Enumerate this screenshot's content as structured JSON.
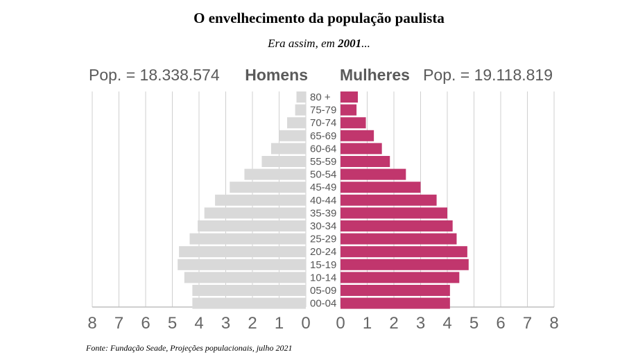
{
  "header": {
    "title": "O envelhecimento da população paulista",
    "subtitle_prefix": "Era assim, em ",
    "subtitle_year": "2001",
    "subtitle_suffix": "..."
  },
  "source": "Fonte: Fundação Seade, Projeções populacionais, julho 2021",
  "chart_data": {
    "type": "bar",
    "orientation": "horizontal",
    "layout": "population-pyramid",
    "categories": [
      "00-04",
      "05-09",
      "10-14",
      "15-19",
      "20-24",
      "25-29",
      "30-34",
      "35-39",
      "40-44",
      "45-49",
      "50-54",
      "55-59",
      "60-64",
      "65-69",
      "70-74",
      "75-79",
      "80 +"
    ],
    "series": [
      {
        "name": "Homens",
        "total_label": "Pop. = 18.338.574",
        "color": "#d9d9d9",
        "values": [
          4.25,
          4.25,
          4.55,
          4.8,
          4.75,
          4.35,
          4.05,
          3.8,
          3.4,
          2.85,
          2.3,
          1.65,
          1.3,
          1.0,
          0.7,
          0.4,
          0.35
        ]
      },
      {
        "name": "Mulheres",
        "total_label": "Pop. = 19.118.819",
        "color": "#c1366d",
        "values": [
          4.1,
          4.1,
          4.45,
          4.8,
          4.75,
          4.35,
          4.2,
          4.0,
          3.6,
          3.0,
          2.45,
          1.85,
          1.55,
          1.25,
          0.95,
          0.6,
          0.65
        ]
      }
    ],
    "xlim": [
      0,
      8
    ],
    "x_ticks": [
      "0",
      "1",
      "2",
      "3",
      "4",
      "5",
      "6",
      "7",
      "8"
    ],
    "grid": true
  }
}
